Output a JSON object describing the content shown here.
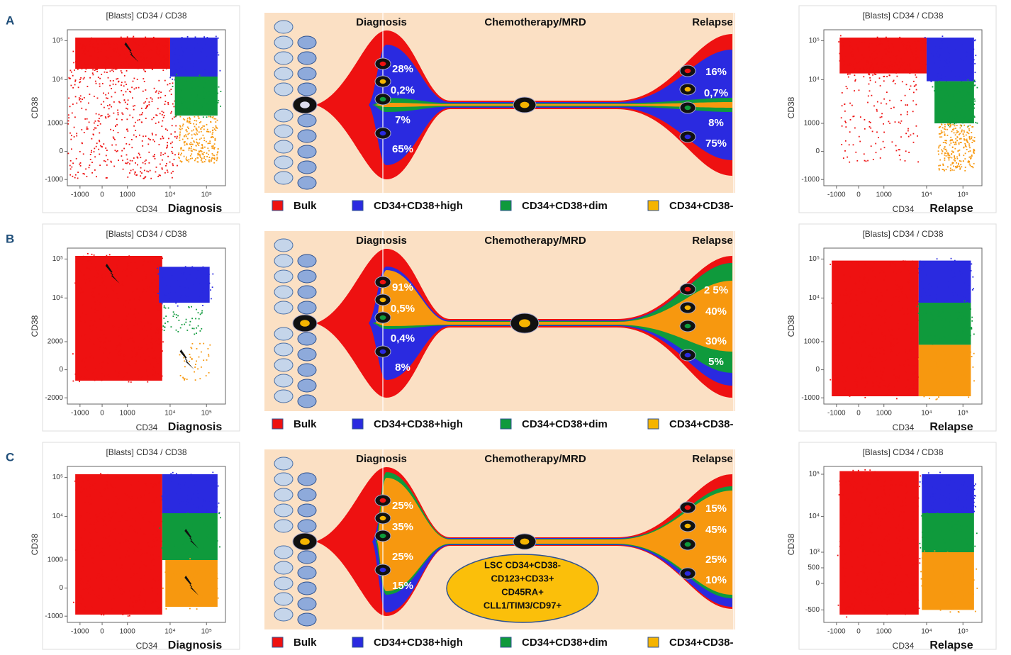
{
  "panels": [
    {
      "letter": "A",
      "diagnosis_plot": {
        "title": "[Blasts] CD34 / CD38",
        "y_label": "CD38",
        "x_label": "CD34",
        "caption": "Diagnosis",
        "y_ticks": [
          "10⁵",
          "10⁴",
          "1000",
          "0",
          "-1000"
        ],
        "x_ticks": [
          "-1000",
          "0",
          "1000",
          "10⁴",
          "10⁵"
        ]
      },
      "fishplot": {
        "stages": [
          "Diagnosis",
          "Chemotherapy/MRD",
          "Relapse"
        ],
        "diagnosis_percentages": [
          "28%",
          "0,2%",
          "7%",
          "65%"
        ],
        "relapse_percentages": [
          "16%",
          "0,7%",
          "8%",
          "75%"
        ]
      },
      "legend": [
        "Bulk",
        "CD34+CD38+high",
        "CD34+CD38+dim",
        "CD34+CD38-"
      ],
      "relapse_plot": {
        "title": "[Blasts] CD34 / CD38",
        "y_label": "CD38",
        "x_label": "CD34",
        "caption": "Relapse",
        "y_ticks": [
          "10⁵",
          "10⁴",
          "1000",
          "0",
          "-1000"
        ],
        "x_ticks": [
          "-1000",
          "0",
          "1000",
          "10⁴",
          "10⁵"
        ]
      }
    },
    {
      "letter": "B",
      "diagnosis_plot": {
        "title": "[Blasts] CD34 / CD38",
        "y_label": "CD38",
        "x_label": "CD34",
        "caption": "Diagnosis",
        "y_ticks": [
          "10⁵",
          "10⁴",
          "2000",
          "0",
          "-2000"
        ],
        "x_ticks": [
          "-1000",
          "0",
          "1000",
          "10⁴",
          "10⁵"
        ]
      },
      "fishplot": {
        "stages": [
          "Diagnosis",
          "Chemotherapy/MRD",
          "Relapse"
        ],
        "diagnosis_percentages": [
          "91%",
          "0,5%",
          "0,4%",
          "8%"
        ],
        "relapse_percentages": [
          "2 5%",
          "40%",
          "30%",
          "5%"
        ]
      },
      "legend": [
        "Bulk",
        "CD34+CD38+high",
        "CD34+CD38+dim",
        "CD34+CD38-"
      ],
      "relapse_plot": {
        "title": "[Blasts] CD34 / CD38",
        "y_label": "CD38",
        "x_label": "CD34",
        "caption": "Relapse",
        "y_ticks": [
          "10⁵",
          "10⁴",
          "1000",
          "0",
          "-1000"
        ],
        "x_ticks": [
          "-1000",
          "0",
          "1000",
          "10⁴",
          "10⁵"
        ]
      }
    },
    {
      "letter": "C",
      "diagnosis_plot": {
        "title": "[Blasts] CD34 / CD38",
        "y_label": "CD38",
        "x_label": "CD34",
        "caption": "Diagnosis",
        "y_ticks": [
          "10⁵",
          "10⁴",
          "1000",
          "0",
          "-1000"
        ],
        "x_ticks": [
          "-1000",
          "0",
          "1000",
          "10⁴",
          "10⁵"
        ]
      },
      "fishplot": {
        "stages": [
          "Diagnosis",
          "Chemotherapy/MRD",
          "Relapse"
        ],
        "diagnosis_percentages": [
          "25%",
          "35%",
          "25%",
          "15%"
        ],
        "relapse_percentages": [
          "15%",
          "45%",
          "25%",
          "10%"
        ],
        "lsc_note": [
          "LSC CD34+CD38-",
          "CD123+CD33+",
          "CD45RA+",
          "CLL1/TIM3/CD97+"
        ]
      },
      "legend": [
        "Bulk",
        "CD34+CD38+high",
        "CD34+CD38+dim",
        "CD34+CD38-"
      ],
      "relapse_plot": {
        "title": "[Blasts] CD34 / CD38",
        "y_label": "CD38",
        "x_label": "CD34",
        "caption": "Relapse",
        "y_ticks": [
          "10⁵",
          "10⁴",
          "10³",
          "500",
          "0",
          "-500"
        ],
        "x_ticks": [
          "-1000",
          "0",
          "1000",
          "10⁴",
          "10⁵"
        ]
      }
    }
  ]
}
